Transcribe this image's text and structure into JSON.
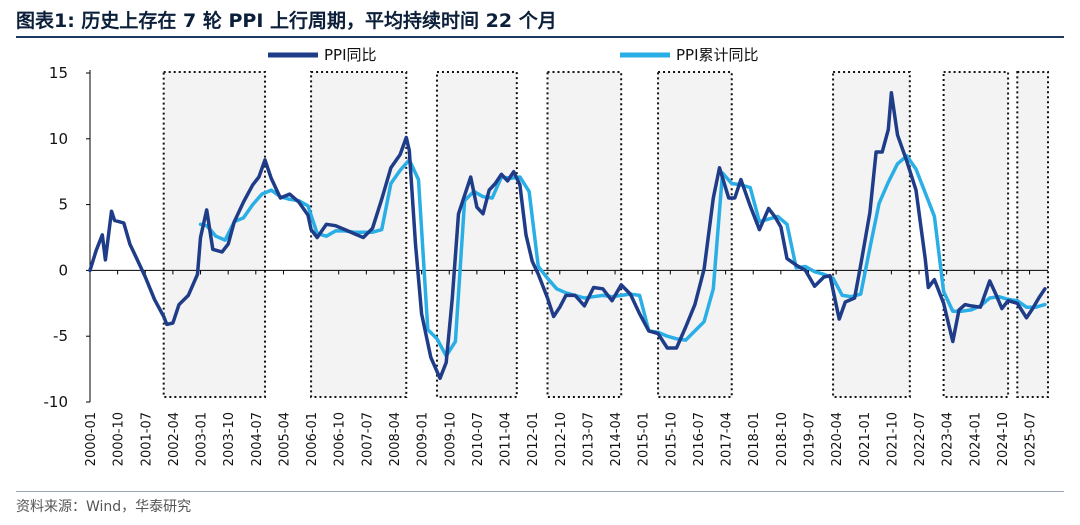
{
  "title": "图表1:  历史上存在 7 轮 PPI 上行周期，平均持续时间 22 个月",
  "source": "资料来源：Wind，华泰研究",
  "colors": {
    "ppi_yoy": "#1f3c88",
    "ppi_cum": "#29aee6",
    "highlight": "#f3f3f3",
    "box_border": "#111111",
    "axis": "#000000"
  },
  "chart_data": {
    "type": "line",
    "title": "历史上存在 7 轮 PPI 上行周期，平均持续时间 22 个月",
    "xlabel": "",
    "ylabel": "",
    "ylim": [
      -10,
      15
    ],
    "yticks": [
      "15",
      "10",
      "5",
      "0",
      "-5",
      "-10"
    ],
    "ytick_values": [
      15,
      10,
      5,
      0,
      -5,
      -10
    ],
    "x_range": [
      "2000-01",
      "2026-01"
    ],
    "xticks": [
      "2000-01",
      "2000-10",
      "2001-07",
      "2002-04",
      "2003-01",
      "2003-10",
      "2004-07",
      "2005-04",
      "2006-01",
      "2006-10",
      "2007-07",
      "2008-04",
      "2009-01",
      "2009-10",
      "2010-07",
      "2011-04",
      "2012-01",
      "2012-10",
      "2013-07",
      "2014-04",
      "2015-01",
      "2015-10",
      "2016-07",
      "2017-04",
      "2018-01",
      "2018-10",
      "2019-07",
      "2020-04",
      "2021-01",
      "2021-10",
      "2022-07",
      "2023-04",
      "2024-01",
      "2024-10",
      "2025-07"
    ],
    "legend": [
      "PPI同比",
      "PPI累计同比"
    ],
    "legend_position": "top-center",
    "highlight_periods": [
      [
        "2002-01",
        "2004-10"
      ],
      [
        "2006-01",
        "2008-08"
      ],
      [
        "2009-06",
        "2011-08"
      ],
      [
        "2012-06",
        "2014-06"
      ],
      [
        "2015-06",
        "2017-06"
      ],
      [
        "2020-03",
        "2022-04"
      ],
      [
        "2023-03",
        "2024-12"
      ],
      [
        "2025-03",
        "2026-01"
      ]
    ],
    "series": [
      {
        "name": "PPI同比",
        "points": [
          [
            "2000-01",
            0.0
          ],
          [
            "2000-03",
            1.5
          ],
          [
            "2000-05",
            2.7
          ],
          [
            "2000-06",
            0.8
          ],
          [
            "2000-08",
            4.5
          ],
          [
            "2000-09",
            3.8
          ],
          [
            "2000-12",
            3.6
          ],
          [
            "2001-02",
            2.0
          ],
          [
            "2001-04",
            1.0
          ],
          [
            "2001-07",
            -0.5
          ],
          [
            "2001-10",
            -2.2
          ],
          [
            "2002-01",
            -3.5
          ],
          [
            "2002-02",
            -4.1
          ],
          [
            "2002-04",
            -4.0
          ],
          [
            "2002-06",
            -2.6
          ],
          [
            "2002-09",
            -1.9
          ],
          [
            "2002-12",
            -0.3
          ],
          [
            "2003-01",
            2.5
          ],
          [
            "2003-03",
            4.6
          ],
          [
            "2003-05",
            1.6
          ],
          [
            "2003-08",
            1.4
          ],
          [
            "2003-10",
            2.0
          ],
          [
            "2003-12",
            3.7
          ],
          [
            "2004-03",
            5.2
          ],
          [
            "2004-06",
            6.5
          ],
          [
            "2004-08",
            7.1
          ],
          [
            "2004-10",
            8.4
          ],
          [
            "2004-12",
            7.0
          ],
          [
            "2005-03",
            5.5
          ],
          [
            "2005-06",
            5.8
          ],
          [
            "2005-09",
            5.2
          ],
          [
            "2005-12",
            4.2
          ],
          [
            "2006-01",
            3.1
          ],
          [
            "2006-03",
            2.5
          ],
          [
            "2006-06",
            3.5
          ],
          [
            "2006-09",
            3.4
          ],
          [
            "2006-12",
            3.1
          ],
          [
            "2007-03",
            2.8
          ],
          [
            "2007-06",
            2.5
          ],
          [
            "2007-09",
            3.2
          ],
          [
            "2007-12",
            5.4
          ],
          [
            "2008-03",
            7.8
          ],
          [
            "2008-06",
            8.8
          ],
          [
            "2008-08",
            10.1
          ],
          [
            "2008-09",
            9.1
          ],
          [
            "2008-11",
            2.0
          ],
          [
            "2009-01",
            -3.3
          ],
          [
            "2009-04",
            -6.6
          ],
          [
            "2009-07",
            -8.2
          ],
          [
            "2009-09",
            -7.0
          ],
          [
            "2009-11",
            -2.1
          ],
          [
            "2010-01",
            4.3
          ],
          [
            "2010-05",
            7.1
          ],
          [
            "2010-07",
            4.8
          ],
          [
            "2010-09",
            4.3
          ],
          [
            "2010-11",
            6.1
          ],
          [
            "2011-01",
            6.6
          ],
          [
            "2011-03",
            7.3
          ],
          [
            "2011-05",
            6.8
          ],
          [
            "2011-07",
            7.5
          ],
          [
            "2011-09",
            6.5
          ],
          [
            "2011-11",
            2.7
          ],
          [
            "2012-01",
            0.7
          ],
          [
            "2012-03",
            -0.3
          ],
          [
            "2012-06",
            -2.1
          ],
          [
            "2012-08",
            -3.5
          ],
          [
            "2012-10",
            -2.8
          ],
          [
            "2012-12",
            -1.9
          ],
          [
            "2013-03",
            -1.9
          ],
          [
            "2013-06",
            -2.7
          ],
          [
            "2013-09",
            -1.3
          ],
          [
            "2013-12",
            -1.4
          ],
          [
            "2014-03",
            -2.3
          ],
          [
            "2014-06",
            -1.1
          ],
          [
            "2014-09",
            -1.8
          ],
          [
            "2014-12",
            -3.3
          ],
          [
            "2015-03",
            -4.6
          ],
          [
            "2015-06",
            -4.8
          ],
          [
            "2015-09",
            -5.9
          ],
          [
            "2015-12",
            -5.9
          ],
          [
            "2016-03",
            -4.3
          ],
          [
            "2016-06",
            -2.6
          ],
          [
            "2016-09",
            0.1
          ],
          [
            "2016-12",
            5.5
          ],
          [
            "2017-02",
            7.8
          ],
          [
            "2017-05",
            5.5
          ],
          [
            "2017-07",
            5.5
          ],
          [
            "2017-09",
            6.9
          ],
          [
            "2017-12",
            4.9
          ],
          [
            "2018-03",
            3.1
          ],
          [
            "2018-06",
            4.7
          ],
          [
            "2018-08",
            4.1
          ],
          [
            "2018-10",
            3.3
          ],
          [
            "2018-12",
            0.9
          ],
          [
            "2019-03",
            0.4
          ],
          [
            "2019-06",
            0.0
          ],
          [
            "2019-09",
            -1.2
          ],
          [
            "2019-12",
            -0.5
          ],
          [
            "2020-02",
            -0.4
          ],
          [
            "2020-05",
            -3.7
          ],
          [
            "2020-07",
            -2.4
          ],
          [
            "2020-10",
            -2.1
          ],
          [
            "2020-12",
            0.4
          ],
          [
            "2021-03",
            4.4
          ],
          [
            "2021-05",
            9.0
          ],
          [
            "2021-07",
            9.0
          ],
          [
            "2021-09",
            10.7
          ],
          [
            "2021-10",
            13.5
          ],
          [
            "2021-12",
            10.3
          ],
          [
            "2022-03",
            8.3
          ],
          [
            "2022-06",
            6.1
          ],
          [
            "2022-09",
            0.9
          ],
          [
            "2022-10",
            -1.3
          ],
          [
            "2022-12",
            -0.7
          ],
          [
            "2023-03",
            -2.5
          ],
          [
            "2023-06",
            -5.4
          ],
          [
            "2023-08",
            -3.0
          ],
          [
            "2023-10",
            -2.6
          ],
          [
            "2023-12",
            -2.7
          ],
          [
            "2024-03",
            -2.8
          ],
          [
            "2024-06",
            -0.8
          ],
          [
            "2024-08",
            -1.8
          ],
          [
            "2024-10",
            -2.9
          ],
          [
            "2024-12",
            -2.3
          ],
          [
            "2025-03",
            -2.5
          ],
          [
            "2025-06",
            -3.6
          ],
          [
            "2025-08",
            -2.9
          ],
          [
            "2025-10",
            -2.1
          ],
          [
            "2025-12",
            -1.4
          ]
        ]
      },
      {
        "name": "PPI累计同比",
        "points": [
          [
            "2003-01",
            3.5
          ],
          [
            "2003-03",
            3.4
          ],
          [
            "2003-06",
            2.6
          ],
          [
            "2003-09",
            2.3
          ],
          [
            "2003-12",
            3.7
          ],
          [
            "2004-03",
            4.0
          ],
          [
            "2004-06",
            5.0
          ],
          [
            "2004-09",
            5.8
          ],
          [
            "2004-12",
            6.1
          ],
          [
            "2005-03",
            5.6
          ],
          [
            "2005-06",
            5.4
          ],
          [
            "2005-09",
            5.3
          ],
          [
            "2005-12",
            4.9
          ],
          [
            "2006-03",
            2.8
          ],
          [
            "2006-06",
            2.6
          ],
          [
            "2006-09",
            3.0
          ],
          [
            "2006-12",
            3.0
          ],
          [
            "2007-03",
            2.9
          ],
          [
            "2007-06",
            2.9
          ],
          [
            "2007-09",
            2.9
          ],
          [
            "2007-12",
            3.1
          ],
          [
            "2008-03",
            6.6
          ],
          [
            "2008-06",
            7.6
          ],
          [
            "2008-09",
            8.4
          ],
          [
            "2008-12",
            6.9
          ],
          [
            "2009-03",
            -4.5
          ],
          [
            "2009-06",
            -5.2
          ],
          [
            "2009-09",
            -6.5
          ],
          [
            "2009-12",
            -5.4
          ],
          [
            "2010-03",
            5.3
          ],
          [
            "2010-06",
            6.0
          ],
          [
            "2010-09",
            5.6
          ],
          [
            "2010-12",
            5.5
          ],
          [
            "2011-03",
            7.1
          ],
          [
            "2011-06",
            7.0
          ],
          [
            "2011-09",
            7.1
          ],
          [
            "2011-12",
            6.0
          ],
          [
            "2012-03",
            0.3
          ],
          [
            "2012-06",
            -0.6
          ],
          [
            "2012-09",
            -1.4
          ],
          [
            "2012-12",
            -1.7
          ],
          [
            "2013-03",
            -1.9
          ],
          [
            "2013-06",
            -2.1
          ],
          [
            "2013-09",
            -2.0
          ],
          [
            "2013-12",
            -1.9
          ],
          [
            "2014-03",
            -2.0
          ],
          [
            "2014-06",
            -1.9
          ],
          [
            "2014-09",
            -1.8
          ],
          [
            "2014-12",
            -1.9
          ],
          [
            "2015-03",
            -4.6
          ],
          [
            "2015-06",
            -4.7
          ],
          [
            "2015-09",
            -5.0
          ],
          [
            "2015-12",
            -5.2
          ],
          [
            "2016-03",
            -5.3
          ],
          [
            "2016-06",
            -4.6
          ],
          [
            "2016-09",
            -3.9
          ],
          [
            "2016-12",
            -1.4
          ],
          [
            "2017-03",
            7.4
          ],
          [
            "2017-06",
            6.6
          ],
          [
            "2017-09",
            6.5
          ],
          [
            "2017-12",
            6.3
          ],
          [
            "2018-03",
            3.7
          ],
          [
            "2018-06",
            3.9
          ],
          [
            "2018-09",
            4.1
          ],
          [
            "2018-12",
            3.5
          ],
          [
            "2019-03",
            0.2
          ],
          [
            "2019-06",
            0.3
          ],
          [
            "2019-09",
            -0.1
          ],
          [
            "2019-12",
            -0.3
          ],
          [
            "2020-03",
            -0.6
          ],
          [
            "2020-06",
            -1.9
          ],
          [
            "2020-09",
            -2.0
          ],
          [
            "2020-12",
            -1.8
          ],
          [
            "2021-03",
            1.7
          ],
          [
            "2021-06",
            5.1
          ],
          [
            "2021-09",
            6.7
          ],
          [
            "2021-12",
            8.1
          ],
          [
            "2022-03",
            8.7
          ],
          [
            "2022-06",
            7.7
          ],
          [
            "2022-09",
            5.9
          ],
          [
            "2022-12",
            4.1
          ],
          [
            "2023-03",
            -1.6
          ],
          [
            "2023-06",
            -3.1
          ],
          [
            "2023-09",
            -3.1
          ],
          [
            "2023-12",
            -3.0
          ],
          [
            "2024-03",
            -2.7
          ],
          [
            "2024-06",
            -2.1
          ],
          [
            "2024-09",
            -2.0
          ],
          [
            "2024-12",
            -2.2
          ],
          [
            "2025-03",
            -2.3
          ],
          [
            "2025-06",
            -2.8
          ],
          [
            "2025-09",
            -2.8
          ],
          [
            "2025-12",
            -2.6
          ]
        ]
      }
    ]
  }
}
